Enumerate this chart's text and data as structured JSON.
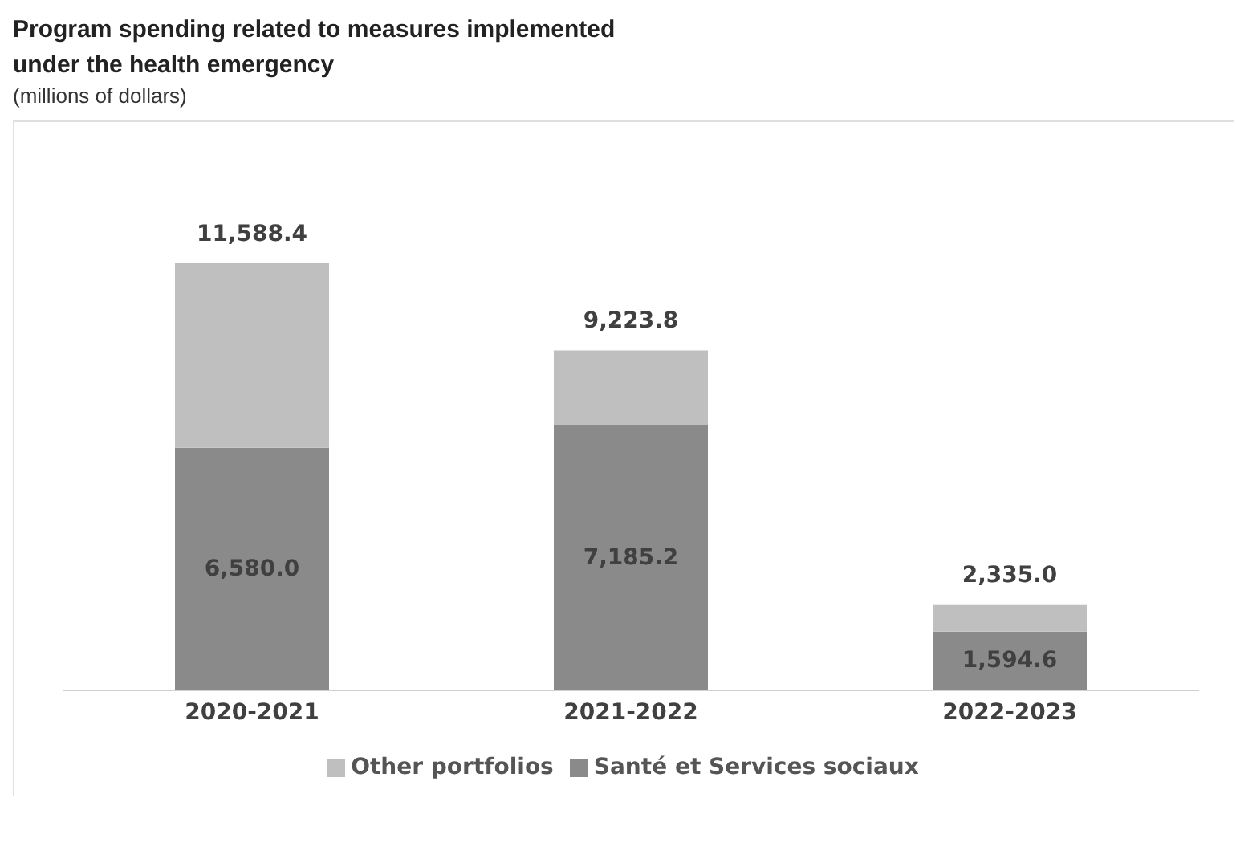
{
  "chart_data": {
    "type": "bar",
    "title": "Program spending related to measures implemented under the health emergency",
    "subtitle": "(millions of dollars)",
    "categories": [
      "2020-2021",
      "2021-2022",
      "2022-2023"
    ],
    "stacked": true,
    "legend": "bottom",
    "grid": false,
    "series": [
      {
        "name": "Santé et Services sociaux",
        "color": "#8a8a8a",
        "values": [
          6580.0,
          7185.2,
          1594.6
        ],
        "value_labels": [
          "6,580.0",
          "7,185.2",
          "1,594.6"
        ]
      },
      {
        "name": "Other portfolios",
        "color": "#bfbfbf",
        "values": [
          5008.4,
          2038.6,
          740.4
        ]
      }
    ],
    "totals": [
      "11,588.4",
      "9,223.8",
      "2,335.0"
    ]
  }
}
